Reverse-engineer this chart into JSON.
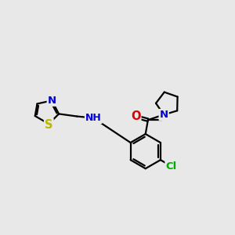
{
  "bg_color": "#e8e8e8",
  "bond_color": "#000000",
  "bond_width": 1.6,
  "atom_colors": {
    "S": "#b8b800",
    "N": "#0000dd",
    "O": "#dd0000",
    "Cl": "#00aa00",
    "H": "#000000",
    "C": "#000000"
  },
  "font_size": 9.5,
  "xlim": [
    -6.5,
    7.5
  ],
  "ylim": [
    -5.0,
    5.5
  ]
}
